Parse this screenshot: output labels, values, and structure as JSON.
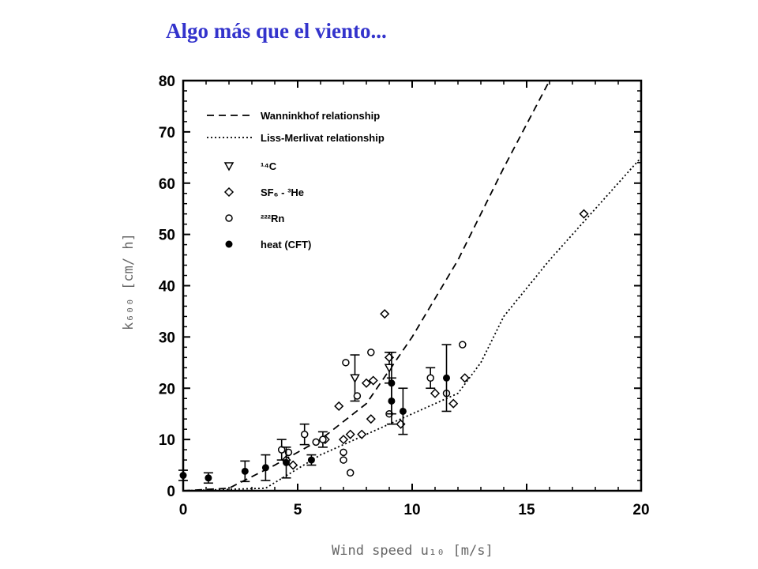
{
  "slide": {
    "title": "Algo más que el viento..."
  },
  "chart_data": {
    "type": "scatter",
    "xlabel": "Wind speed u₁₀ [m/s]",
    "ylabel": "k₆₀₀ [cm/ h]",
    "xlim": [
      0,
      20
    ],
    "ylim": [
      0,
      80
    ],
    "x_ticks": [
      0,
      5,
      10,
      15,
      20
    ],
    "y_ticks": [
      0,
      10,
      20,
      30,
      40,
      50,
      60,
      70,
      80
    ],
    "legend_position": "top-left",
    "grid": false,
    "lines": [
      {
        "name": "Wanninkhof relationship",
        "style": "dashed",
        "x": [
          0,
          2,
          4,
          6,
          8,
          10,
          12,
          14,
          16
        ],
        "y": [
          0,
          0.5,
          5,
          10,
          17,
          30,
          45,
          63,
          80
        ]
      },
      {
        "name": "Liss-Merlivat relationship",
        "style": "dotted",
        "x": [
          0,
          3.6,
          6,
          8,
          10,
          12,
          13,
          14,
          16,
          18,
          20
        ],
        "y": [
          0,
          0.5,
          7,
          11,
          15,
          19,
          25,
          34,
          45,
          55,
          65
        ]
      }
    ],
    "series": [
      {
        "name": "¹⁴C",
        "marker": "triangle-down",
        "points": [
          {
            "x": 7.5,
            "y": 22,
            "err": 4.5
          },
          {
            "x": 9.0,
            "y": 24,
            "err": 3
          }
        ]
      },
      {
        "name": "SF₆ - ³He",
        "marker": "diamond",
        "points": [
          {
            "x": 4.5,
            "y": 6
          },
          {
            "x": 4.8,
            "y": 5
          },
          {
            "x": 6.2,
            "y": 10
          },
          {
            "x": 6.8,
            "y": 16.5
          },
          {
            "x": 7.0,
            "y": 10
          },
          {
            "x": 7.3,
            "y": 11
          },
          {
            "x": 7.8,
            "y": 11
          },
          {
            "x": 8.0,
            "y": 21
          },
          {
            "x": 8.3,
            "y": 21.5
          },
          {
            "x": 8.2,
            "y": 14
          },
          {
            "x": 8.8,
            "y": 34.5
          },
          {
            "x": 9.0,
            "y": 26
          },
          {
            "x": 9.5,
            "y": 13
          },
          {
            "x": 11.0,
            "y": 19
          },
          {
            "x": 11.8,
            "y": 17
          },
          {
            "x": 12.3,
            "y": 22
          },
          {
            "x": 17.5,
            "y": 54
          }
        ]
      },
      {
        "name": "²²²Rn",
        "marker": "circle",
        "points": [
          {
            "x": 4.3,
            "y": 8,
            "err": 2
          },
          {
            "x": 4.6,
            "y": 7.5
          },
          {
            "x": 5.3,
            "y": 11,
            "err": 2
          },
          {
            "x": 5.8,
            "y": 9.5
          },
          {
            "x": 6.1,
            "y": 10,
            "err": 1.5
          },
          {
            "x": 7.0,
            "y": 6
          },
          {
            "x": 7.0,
            "y": 7.5
          },
          {
            "x": 7.3,
            "y": 3.5
          },
          {
            "x": 7.1,
            "y": 25
          },
          {
            "x": 7.6,
            "y": 18.5
          },
          {
            "x": 8.2,
            "y": 27
          },
          {
            "x": 9.0,
            "y": 15
          },
          {
            "x": 10.8,
            "y": 22,
            "err": 2
          },
          {
            "x": 11.5,
            "y": 19
          },
          {
            "x": 12.2,
            "y": 28.5
          }
        ]
      },
      {
        "name": "heat (CFT)",
        "marker": "filled-circle",
        "points": [
          {
            "x": 0,
            "y": 3,
            "err": 1
          },
          {
            "x": 1.1,
            "y": 2.5,
            "err": 1
          },
          {
            "x": 2.7,
            "y": 3.8,
            "err": 2
          },
          {
            "x": 3.6,
            "y": 4.5,
            "err": 2.5
          },
          {
            "x": 4.5,
            "y": 5.5,
            "err": 3
          },
          {
            "x": 5.6,
            "y": 6,
            "err": 1
          },
          {
            "x": 9.1,
            "y": 21,
            "err": 6
          },
          {
            "x": 9.1,
            "y": 17.5,
            "err": 4.5
          },
          {
            "x": 9.6,
            "y": 15.5,
            "err": 4.5
          },
          {
            "x": 11.5,
            "y": 22,
            "err": 6.5
          }
        ]
      }
    ]
  }
}
